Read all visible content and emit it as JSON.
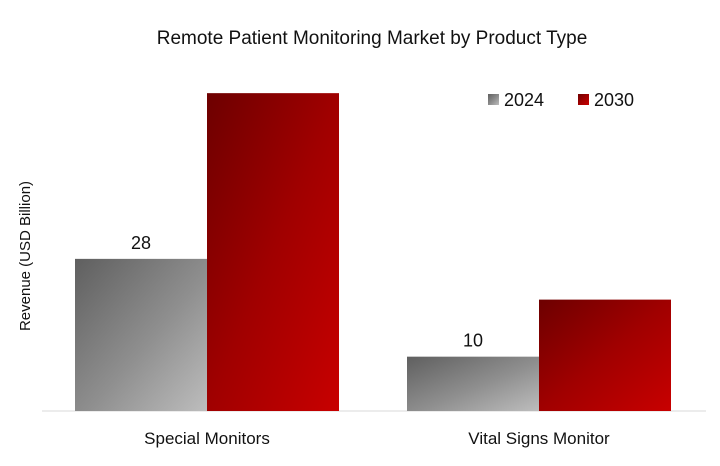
{
  "chart_data": {
    "type": "bar",
    "title": "Remote Patient Monitoring Market by Product Type",
    "xlabel": "",
    "ylabel": "Revenue (USD Billion)",
    "categories": [
      "Special Monitors",
      "Vital Signs Monitor"
    ],
    "series": [
      {
        "name": "2024",
        "values": [
          28,
          10
        ],
        "color": "#8c8c8c",
        "data_labels": [
          "28",
          "10"
        ]
      },
      {
        "name": "2030",
        "values": [
          58.5,
          20.5
        ],
        "color": "#b20000",
        "data_labels": []
      }
    ],
    "ylim": [
      0,
      60
    ],
    "grid": false,
    "legend_position": "top-right",
    "show_y_axis_ticks": false
  }
}
